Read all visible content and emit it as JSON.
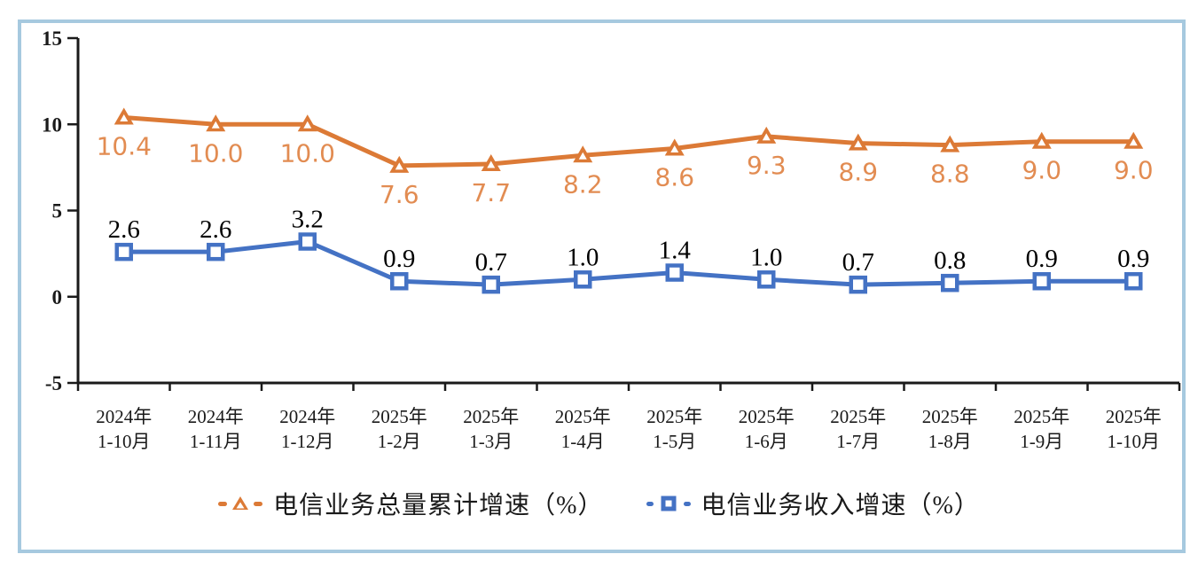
{
  "colors": {
    "frame_border": "#A6C9DF",
    "axis": "#1A1A1A",
    "background": "#FFFFFF"
  },
  "chart_data": {
    "type": "line",
    "title": "",
    "xlabel": "",
    "ylabel": "",
    "ylim": [
      -5,
      15
    ],
    "yticks": [
      15,
      10,
      5,
      0,
      -5
    ],
    "grid": false,
    "legend_position": "bottom",
    "categories": [
      {
        "line1": "2024年",
        "line2": "1-10月"
      },
      {
        "line1": "2024年",
        "line2": "1-11月"
      },
      {
        "line1": "2024年",
        "line2": "1-12月"
      },
      {
        "line1": "2025年",
        "line2": "1-2月"
      },
      {
        "line1": "2025年",
        "line2": "1-3月"
      },
      {
        "line1": "2025年",
        "line2": "1-4月"
      },
      {
        "line1": "2025年",
        "line2": "1-5月"
      },
      {
        "line1": "2025年",
        "line2": "1-6月"
      },
      {
        "line1": "2025年",
        "line2": "1-7月"
      },
      {
        "line1": "2025年",
        "line2": "1-8月"
      },
      {
        "line1": "2025年",
        "line2": "1-9月"
      },
      {
        "line1": "2025年",
        "line2": "1-10月"
      }
    ],
    "series": [
      {
        "name": "电信业务总量累计增速（%）",
        "marker": "triangle",
        "color": "#DC7A36",
        "label_color": "#E28C52",
        "label_position": "below",
        "values": [
          10.4,
          10.0,
          10.0,
          7.6,
          7.7,
          8.2,
          8.6,
          9.3,
          8.9,
          8.8,
          9.0,
          9.0
        ],
        "labels": [
          "10.4",
          "10.0",
          "10.0",
          "7.6",
          "7.7",
          "8.2",
          "8.6",
          "9.3",
          "8.9",
          "8.8",
          "9.0",
          "9.0"
        ]
      },
      {
        "name": "电信业务收入增速（%）",
        "marker": "square",
        "color": "#4472C4",
        "label_color": "#000000",
        "label_position": "above",
        "values": [
          2.6,
          2.6,
          3.2,
          0.9,
          0.7,
          1.0,
          1.4,
          1.0,
          0.7,
          0.8,
          0.9,
          0.9
        ],
        "labels": [
          "2.6",
          "2.6",
          "3.2",
          "0.9",
          "0.7",
          "1.0",
          "1.4",
          "1.0",
          "0.7",
          "0.8",
          "0.9",
          "0.9"
        ]
      }
    ]
  }
}
